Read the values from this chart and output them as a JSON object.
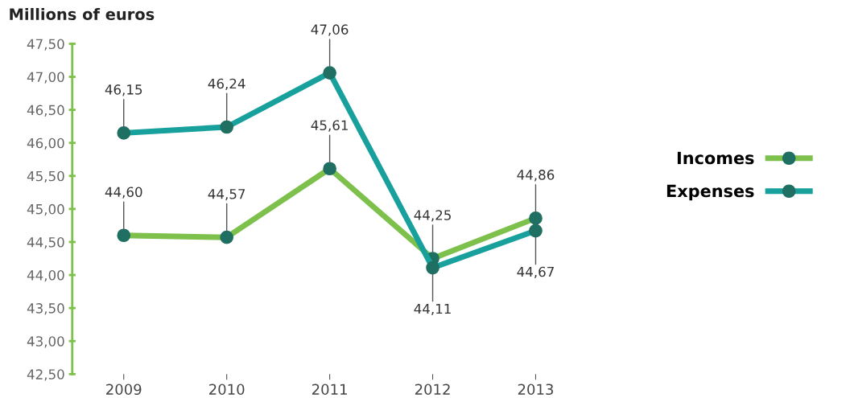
{
  "chart_data": {
    "type": "line",
    "title": "Millions of euros",
    "categories": [
      "2009",
      "2010",
      "2011",
      "2012",
      "2013"
    ],
    "series": [
      {
        "name": "Incomes",
        "color": "#7dc04b",
        "values": [
          44.6,
          44.57,
          45.61,
          44.25,
          44.86
        ],
        "value_labels": [
          "44,60",
          "44,57",
          "45,61",
          "44,25",
          "44,86"
        ]
      },
      {
        "name": "Expenses",
        "color": "#17a09c",
        "values": [
          46.15,
          46.24,
          47.06,
          44.11,
          44.67
        ],
        "value_labels": [
          "46,15",
          "46,24",
          "47,06",
          "44,11",
          "44,67"
        ]
      }
    ],
    "ylim": [
      42.5,
      47.5
    ],
    "yticks": [
      {
        "value": 42.5,
        "label": "42,50"
      },
      {
        "value": 43.0,
        "label": "43,00"
      },
      {
        "value": 43.5,
        "label": "43,50"
      },
      {
        "value": 44.0,
        "label": "44,00"
      },
      {
        "value": 44.5,
        "label": "44,50"
      },
      {
        "value": 45.0,
        "label": "45,00"
      },
      {
        "value": 45.5,
        "label": "45,50"
      },
      {
        "value": 46.0,
        "label": "46,00"
      },
      {
        "value": 46.5,
        "label": "46,50"
      },
      {
        "value": 47.0,
        "label": "47,00"
      },
      {
        "value": 47.5,
        "label": "47,50"
      }
    ],
    "marker": "circle",
    "line_style": "solid",
    "grid": false,
    "legend": "right"
  }
}
